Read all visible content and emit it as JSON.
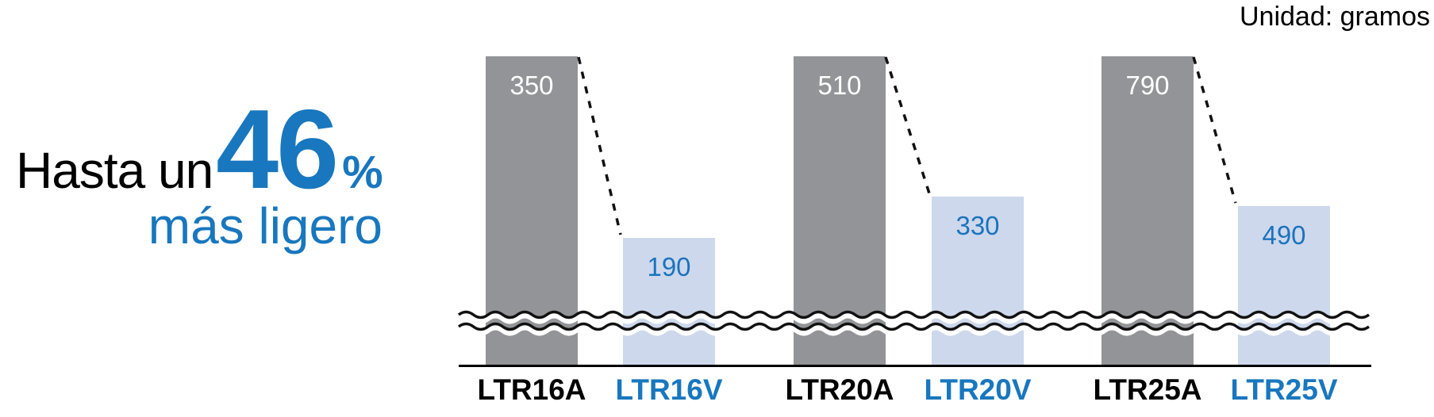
{
  "unit_label": "Unidad: gramos",
  "headline": {
    "prefix": "Hasta un",
    "big_number": "46",
    "percent_sign": "%",
    "line2": "más ligero"
  },
  "chart_data": {
    "type": "bar",
    "title": "Hasta un 46% más ligero",
    "unit": "gramos",
    "unit_label": "Unidad: gramos",
    "axis_break": true,
    "grid": false,
    "legend": false,
    "categories": [
      "LTR16A",
      "LTR16V",
      "LTR20A",
      "LTR20V",
      "LTR25A",
      "LTR25V"
    ],
    "values": [
      350,
      190,
      510,
      330,
      790,
      490
    ],
    "bars": [
      {
        "label": "LTR16A",
        "value": 350,
        "style": "gray"
      },
      {
        "label": "LTR16V",
        "value": 190,
        "style": "lightblue"
      },
      {
        "label": "LTR20A",
        "value": 510,
        "style": "gray"
      },
      {
        "label": "LTR20V",
        "value": 330,
        "style": "lightblue"
      },
      {
        "label": "LTR25A",
        "value": 790,
        "style": "gray"
      },
      {
        "label": "LTR25V",
        "value": 490,
        "style": "lightblue"
      }
    ],
    "colors": {
      "bar_gray": "#929497",
      "bar_light_blue": "#cdd8ec",
      "accent_blue": "#1877be",
      "value_text_blue": "#1b73bd",
      "value_text_on_gray": "#ffffff",
      "text_black": "#000000"
    }
  }
}
